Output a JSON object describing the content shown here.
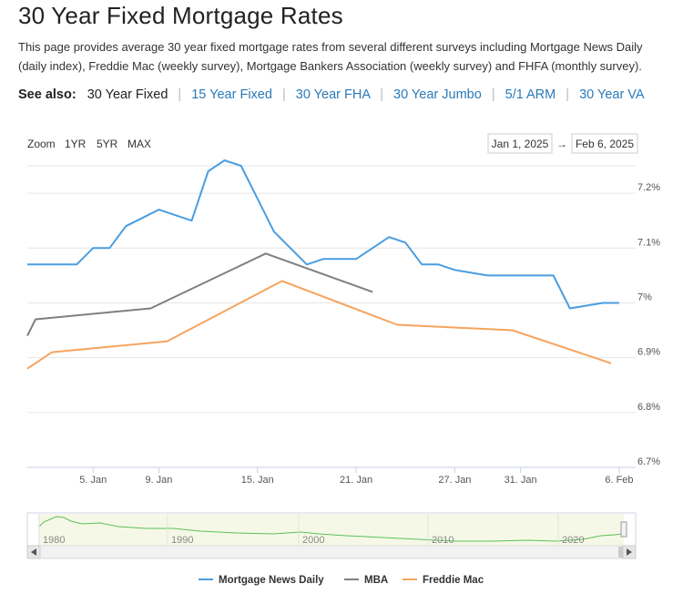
{
  "title": "30 Year Fixed Mortgage Rates",
  "description": "This page provides average 30 year fixed mortgage rates from several different surveys including Mortgage News Daily (daily index), Freddie Mac (weekly survey), Mortgage Bankers Association (weekly survey) and FHFA (monthly survey).",
  "see_also": {
    "label": "See also:",
    "current": "30 Year Fixed",
    "links": [
      "15 Year Fixed",
      "30 Year FHA",
      "30 Year Jumbo",
      "5/1 ARM",
      "30 Year VA"
    ]
  },
  "zoom": {
    "label": "Zoom",
    "options": [
      "1YR",
      "5YR",
      "MAX"
    ]
  },
  "range": {
    "from": "Jan 1, 2025",
    "arrow": "→",
    "to": "Feb 6, 2025"
  },
  "navigator": {
    "years": [
      "1980",
      "1990",
      "2000",
      "2010",
      "2020"
    ]
  },
  "colors": {
    "mnd": "#4a9de0",
    "mba": "#7f7f7f",
    "freddie": "#f5a45f",
    "navigator": "#5cc05c"
  },
  "chart_data": {
    "type": "line",
    "x_axis": {
      "min_day": 1,
      "max_day": 38,
      "ticks": [
        "5. Jan",
        "9. Jan",
        "15. Jan",
        "21. Jan",
        "27. Jan",
        "31. Jan",
        "6. Feb"
      ],
      "tick_days": [
        5,
        9,
        15,
        21,
        27,
        31,
        37
      ]
    },
    "y_axis": {
      "min": 6.7,
      "max": 7.25,
      "ticks": [
        "7.2%",
        "7.1%",
        "7%",
        "6.9%",
        "6.8%",
        "6.7%"
      ],
      "tick_values": [
        7.2,
        7.1,
        7.0,
        6.9,
        6.8,
        6.7
      ]
    },
    "legend_position": "bottom-center",
    "series": [
      {
        "name": "Mortgage News Daily",
        "color": "#4a9de0",
        "days": [
          1,
          3,
          4,
          5,
          6,
          7,
          8,
          9,
          11,
          12,
          13,
          14,
          15,
          16,
          17,
          18,
          19,
          20,
          21,
          23,
          24,
          25,
          26,
          27,
          28,
          29,
          30,
          31,
          32,
          33,
          34,
          35,
          36,
          37
        ],
        "values": [
          7.07,
          7.07,
          7.07,
          7.1,
          7.1,
          7.14,
          7.155,
          7.17,
          7.15,
          7.24,
          7.26,
          7.25,
          7.19,
          7.13,
          7.1,
          7.07,
          7.08,
          7.08,
          7.08,
          7.12,
          7.11,
          7.07,
          7.07,
          7.06,
          7.055,
          7.05,
          7.05,
          7.05,
          7.05,
          7.05,
          6.99,
          6.995,
          7.0,
          7.0
        ]
      },
      {
        "name": "MBA",
        "color": "#7f7f7f",
        "days": [
          1,
          1.5,
          8.5,
          15.5,
          22
        ],
        "values": [
          6.94,
          6.97,
          6.99,
          7.09,
          7.02
        ]
      },
      {
        "name": "Freddie Mac",
        "color": "#f5a45f",
        "days": [
          1,
          2.5,
          9.5,
          16.5,
          23.5,
          30.5,
          36.5
        ],
        "values": [
          6.88,
          6.91,
          6.93,
          7.04,
          6.96,
          6.95,
          6.89
        ]
      }
    ]
  }
}
